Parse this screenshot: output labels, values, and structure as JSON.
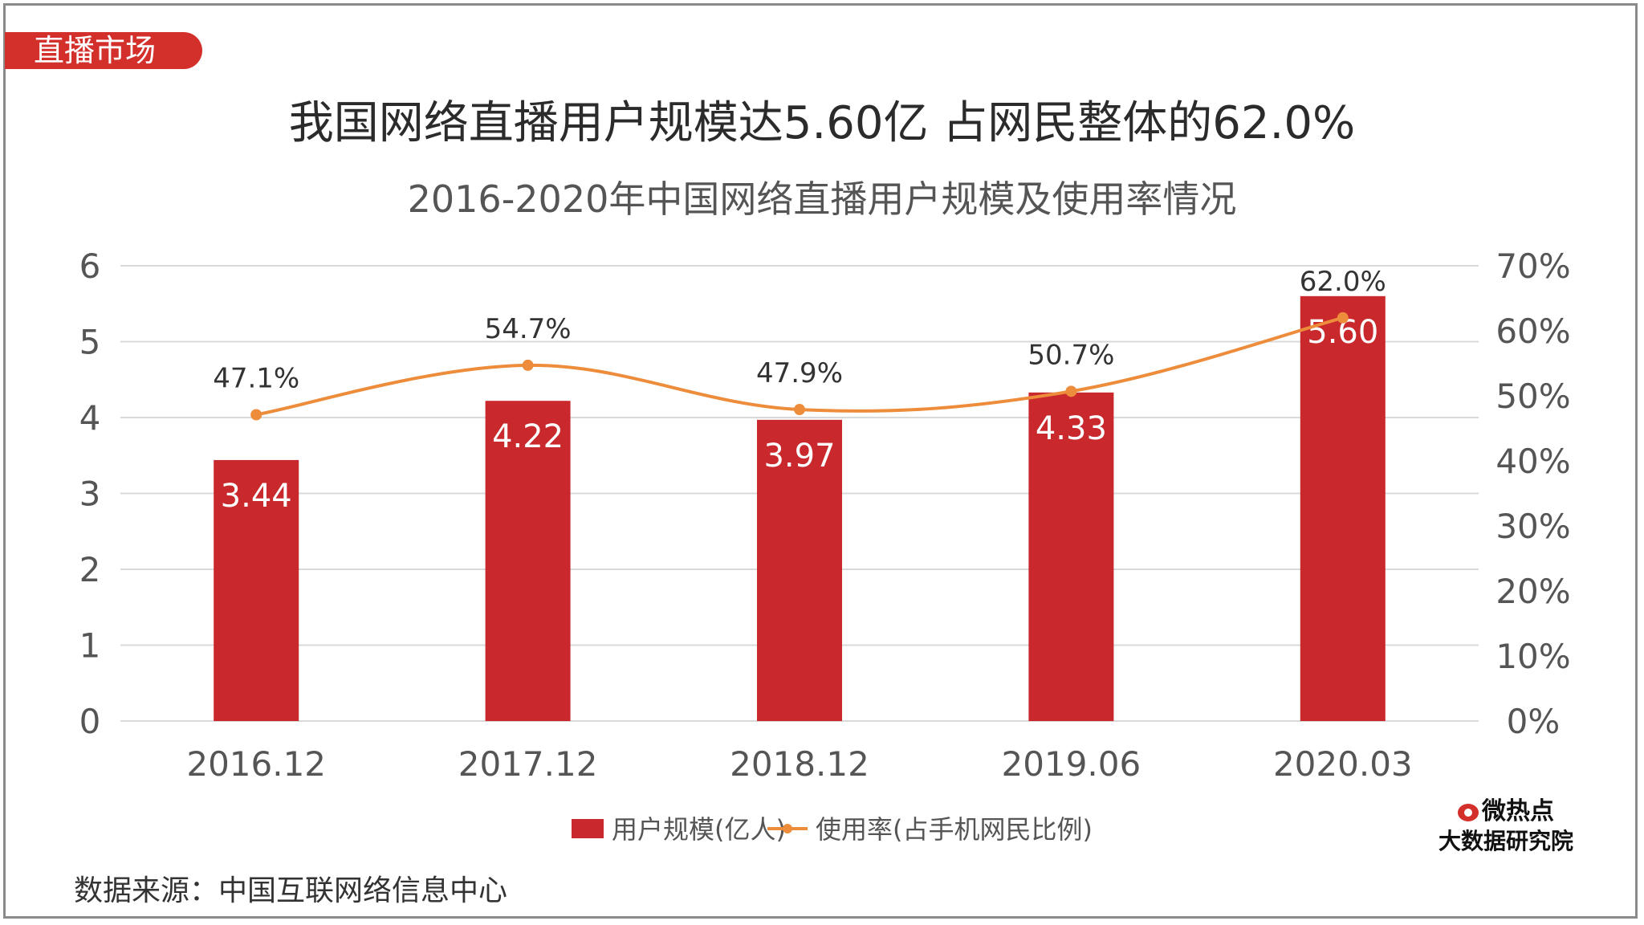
{
  "tag": "直播市场",
  "headline": "我国网络直播用户规模达5.60亿 占网民整体的62.0%",
  "source": "数据来源：中国互联网络信息中心",
  "brand": {
    "line1": "微热点",
    "line2": "大数据研究院"
  },
  "colors": {
    "bar": "#c9282d",
    "line": "#ed8c3a",
    "accent": "#d3302b"
  },
  "chart_data": {
    "type": "bar",
    "title": "2016-2020年中国网络直播用户规模及使用率情况",
    "categories": [
      "2016.12",
      "2017.12",
      "2018.12",
      "2019.06",
      "2020.03"
    ],
    "series": [
      {
        "name": "用户规模(亿人)",
        "type": "bar",
        "axis": "left",
        "values": [
          3.44,
          4.22,
          3.97,
          4.33,
          5.6
        ],
        "labels": [
          "3.44",
          "4.22",
          "3.97",
          "4.33",
          "5.60"
        ]
      },
      {
        "name": "使用率(占手机网民比例)",
        "type": "line",
        "axis": "right",
        "values": [
          47.1,
          54.7,
          47.9,
          50.7,
          62.0
        ],
        "labels": [
          "47.1%",
          "54.7%",
          "47.9%",
          "50.7%",
          "62.0%"
        ]
      }
    ],
    "ylim": [
      0,
      6
    ],
    "y_ticks": [
      "0",
      "1",
      "2",
      "3",
      "4",
      "5",
      "6"
    ],
    "y2lim": [
      0,
      70
    ],
    "y2_ticks": [
      "0%",
      "10%",
      "20%",
      "30%",
      "40%",
      "50%",
      "60%",
      "70%"
    ],
    "legend": "bottom-center",
    "grid": true
  }
}
